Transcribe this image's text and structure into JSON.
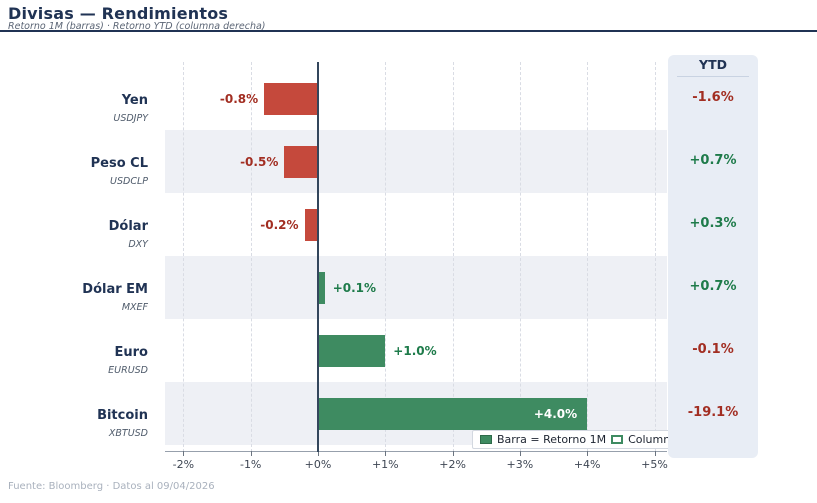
{
  "header": {
    "title": "Divisas — Rendimientos",
    "subtitle": "Retorno 1M (barras)  ·  Retorno YTD (columna derecha)"
  },
  "ytd_panel": {
    "header": "YTD"
  },
  "legend": {
    "bar_label": "Barra = Retorno 1M",
    "column_label": "Columna = YTD"
  },
  "footer": {
    "text": "Fuente: Bloomberg  ·  Datos al 09/04/2026"
  },
  "chart_data": {
    "type": "bar",
    "orientation": "horizontal",
    "title": "Divisas — Rendimientos",
    "subtitle": "Retorno 1M (barras) · Retorno YTD (columna derecha)",
    "unit": "%",
    "categories": [
      "Yen",
      "Peso CL",
      "Dólar",
      "Dólar EM",
      "Euro",
      "Bitcoin"
    ],
    "tickers": [
      "USDJPY",
      "USDCLP",
      "DXY",
      "MXEF",
      "EURUSD",
      "XBTUSD"
    ],
    "series": [
      {
        "name": "Retorno 1M",
        "values": [
          -0.8,
          -0.5,
          -0.2,
          0.1,
          1.0,
          4.0
        ],
        "labels": [
          "-0.8%",
          "-0.5%",
          "-0.2%",
          "+0.1%",
          "+1.0%",
          "+4.0%"
        ]
      },
      {
        "name": "Retorno YTD",
        "values": [
          -1.6,
          0.7,
          0.3,
          0.7,
          -0.1,
          -19.1
        ],
        "labels": [
          "-1.6%",
          "+0.7%",
          "+0.3%",
          "+0.7%",
          "-0.1%",
          "-19.1%"
        ]
      }
    ],
    "x_ticks": [
      {
        "value": -2,
        "label": "-2%"
      },
      {
        "value": -1,
        "label": "-1%"
      },
      {
        "value": 0,
        "label": "+0%"
      },
      {
        "value": 1,
        "label": "+1%"
      },
      {
        "value": 2,
        "label": "+2%"
      },
      {
        "value": 3,
        "label": "+3%"
      },
      {
        "value": 4,
        "label": "+4%"
      },
      {
        "value": 5,
        "label": "+5%"
      }
    ],
    "xlim": [
      -2.28,
      5.19
    ],
    "grid": "vertical-dashed",
    "legend_position": "bottom-right",
    "colors": {
      "positive_bar": "#3e8b61",
      "negative_bar": "#c5493c",
      "positive_text": "#1e7b4a",
      "negative_text": "#a22e22",
      "inside_text": "#ffffff",
      "stripe": "#eef0f5",
      "panel": "#e8edf5",
      "accent_navy": "#203354"
    }
  }
}
